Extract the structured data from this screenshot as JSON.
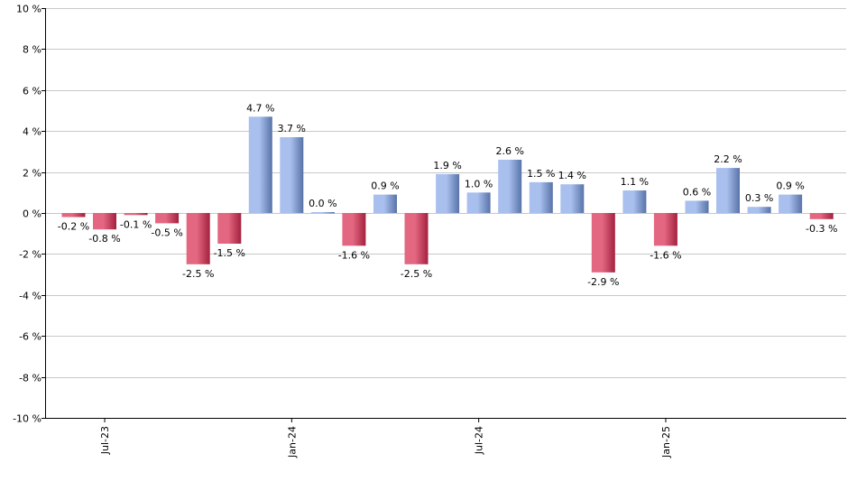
{
  "chart_data": {
    "type": "bar",
    "title": "",
    "xlabel": "",
    "ylabel": "",
    "ylim": [
      -10,
      10
    ],
    "yticks": [
      10,
      8,
      6,
      4,
      2,
      0,
      -2,
      -4,
      -6,
      -8,
      -10
    ],
    "ytick_labels": [
      "10 %",
      "8 %",
      "6 %",
      "4 %",
      "2 %",
      "0 %",
      "-2 %",
      "-4 %",
      "-6 %",
      "-8 %",
      "-10 %"
    ],
    "value_suffix": " %",
    "grid": true,
    "legend": "none",
    "categories": [
      "2023-06",
      "2023-07",
      "2023-08",
      "2023-09",
      "2023-10",
      "2023-11",
      "2023-12",
      "2024-01",
      "2024-02",
      "2024-03",
      "2024-04",
      "2024-05",
      "2024-06",
      "2024-07",
      "2024-08",
      "2024-09",
      "2024-10",
      "2024-11",
      "2024-12",
      "2025-01",
      "2025-02",
      "2025-03",
      "2025-04",
      "2025-05",
      "2025-06",
      "2025-07"
    ],
    "values": [
      -0.2,
      -0.8,
      -0.1,
      -0.5,
      -2.5,
      -1.5,
      4.7,
      3.7,
      0.0,
      -1.6,
      0.9,
      -2.5,
      1.9,
      1.0,
      2.6,
      1.5,
      1.4,
      -2.9,
      1.1,
      -1.6,
      0.6,
      2.2,
      0.3,
      0.9,
      -0.3,
      null
    ],
    "value_labels": [
      "-0.2 %",
      "-0.8 %",
      "-0.1 %",
      "-0.5 %",
      "-2.5 %",
      "-1.5 %",
      "4.7 %",
      "3.7 %",
      "0.0 %",
      "-1.6 %",
      "0.9 %",
      "-2.5 %",
      "1.9 %",
      "1.0 %",
      "2.6 %",
      "1.5 %",
      "1.4 %",
      "-2.9 %",
      "1.1 %",
      "-1.6 %",
      "0.6 %",
      "2.2 %",
      "0.3 %",
      "0.9 %",
      "-0.3 %",
      ""
    ],
    "x_tick_labels": [
      {
        "category": "2023-07",
        "label": "Jul-23"
      },
      {
        "category": "2024-01",
        "label": "Jan-24"
      },
      {
        "category": "2024-07",
        "label": "Jul-24"
      },
      {
        "category": "2025-01",
        "label": "Jan-25"
      }
    ],
    "colors": {
      "positive_dark": "#5873a8",
      "positive_light": "#a9c0ee",
      "negative_dark": "#a3213f",
      "negative_light": "#e36780",
      "grid": "#c8c8c8",
      "axis": "#000000",
      "text": "#000000"
    }
  }
}
